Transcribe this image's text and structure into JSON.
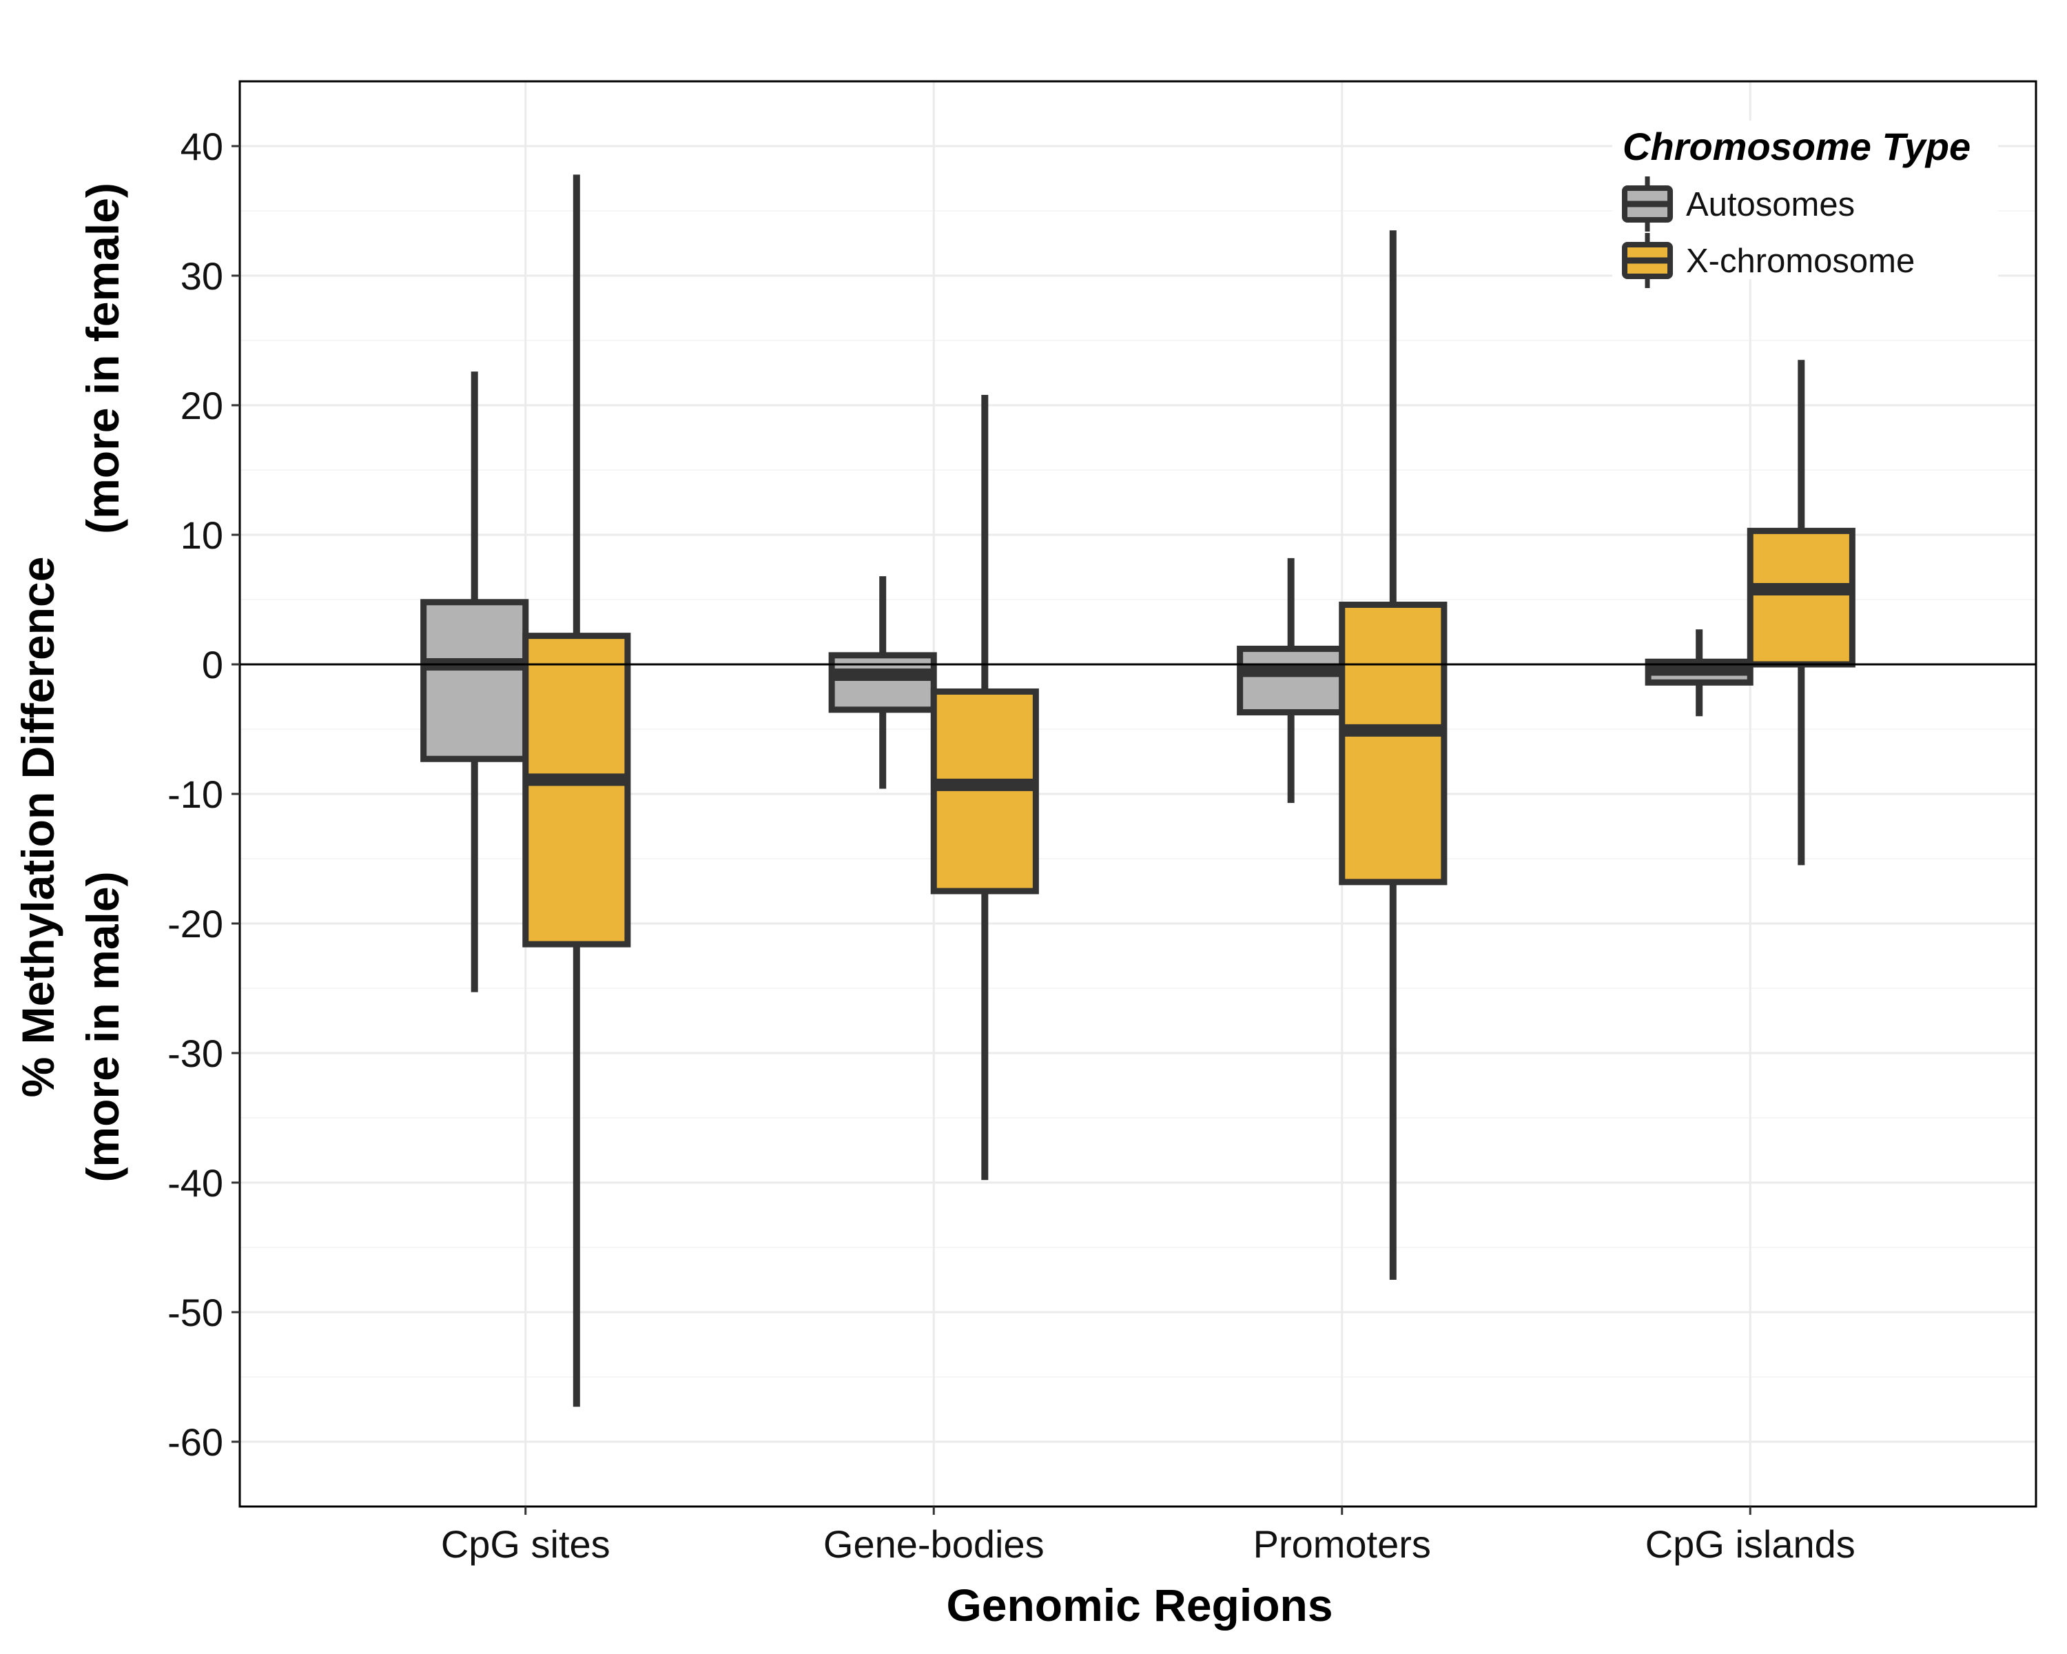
{
  "chart_data": {
    "type": "boxplot",
    "xlabel": "Genomic Regions",
    "ylabel_lines": [
      "% Methylation Difference",
      "(more in female)",
      "(more in male)"
    ],
    "ylim": [
      -65,
      45
    ],
    "yticks": [
      40,
      30,
      20,
      10,
      0,
      -10,
      -20,
      -30,
      -40,
      -50,
      -60
    ],
    "grid": true,
    "reference_line": 0,
    "categories": [
      "CpG sites",
      "Gene-bodies",
      "Promoters",
      "CpG islands"
    ],
    "legend": {
      "title": "Chromosome Type",
      "position": "top-right"
    },
    "series": [
      {
        "name": "Autosomes",
        "color": "#b3b3b3",
        "boxes": [
          {
            "whisker_low": -25.3,
            "q1": -7.3,
            "median": 0.0,
            "q3": 4.8,
            "whisker_high": 22.6
          },
          {
            "whisker_low": -9.6,
            "q1": -3.5,
            "median": -0.8,
            "q3": 0.7,
            "whisker_high": 6.8
          },
          {
            "whisker_low": -10.7,
            "q1": -3.7,
            "median": -0.5,
            "q3": 1.2,
            "whisker_high": 8.2
          },
          {
            "whisker_low": -4.0,
            "q1": -1.4,
            "median": -0.4,
            "q3": 0.2,
            "whisker_high": 2.7
          }
        ]
      },
      {
        "name": "X-chromosome",
        "color": "#ebb53a",
        "boxes": [
          {
            "whisker_low": -57.3,
            "q1": -21.6,
            "median": -8.9,
            "q3": 2.2,
            "whisker_high": 37.8
          },
          {
            "whisker_low": -39.8,
            "q1": -17.5,
            "median": -9.3,
            "q3": -2.1,
            "whisker_high": 20.8
          },
          {
            "whisker_low": -47.5,
            "q1": -16.8,
            "median": -5.1,
            "q3": 4.6,
            "whisker_high": 33.5
          },
          {
            "whisker_low": -15.5,
            "q1": 0.0,
            "median": 5.8,
            "q3": 10.3,
            "whisker_high": 23.5
          }
        ]
      }
    ]
  }
}
